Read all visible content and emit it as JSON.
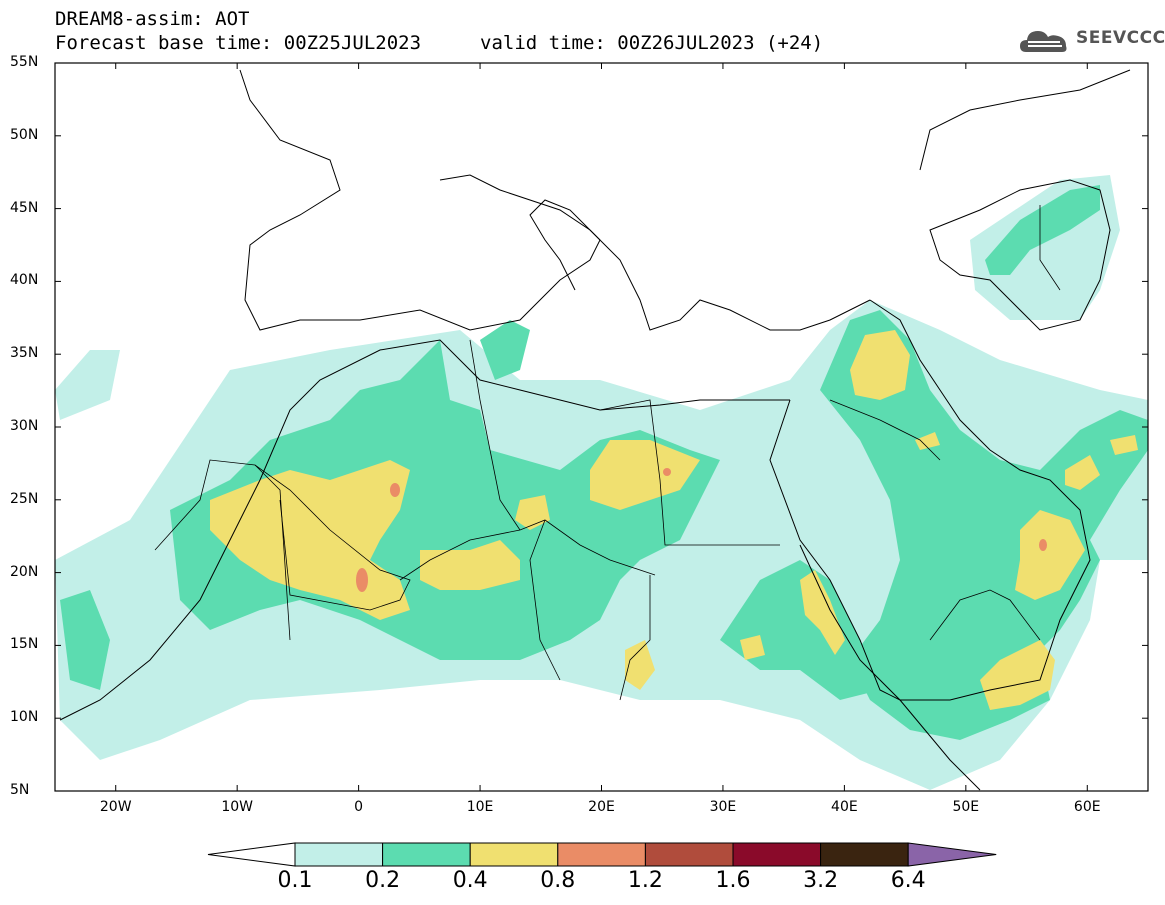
{
  "header": {
    "title": "DREAM8-assim: AOT",
    "base_time": "Forecast base time: 00Z25JUL2023",
    "valid_time": "valid time: 00Z26JUL2023 (+24)"
  },
  "logo": {
    "text": "SEEVCCC",
    "icon": "cloud-icon"
  },
  "map": {
    "lat_labels": [
      "55N",
      "50N",
      "45N",
      "40N",
      "35N",
      "30N",
      "25N",
      "20N",
      "15N",
      "10N",
      "5N"
    ],
    "lon_labels": [
      "20W",
      "10W",
      "0",
      "10E",
      "20E",
      "30E",
      "40E",
      "50E",
      "60E"
    ],
    "lat_range": [
      5,
      55
    ],
    "lon_range": [
      -25,
      65
    ]
  },
  "colorbar": {
    "labels": [
      "0.1",
      "0.2",
      "0.4",
      "0.8",
      "1.2",
      "1.6",
      "3.2",
      "6.4"
    ],
    "colors": [
      "#c2efe8",
      "#5cdcb0",
      "#f0e070",
      "#ea8c66",
      "#b04c3c",
      "#8a0a2a",
      "#3a2410",
      "#8a64a8"
    ]
  }
}
